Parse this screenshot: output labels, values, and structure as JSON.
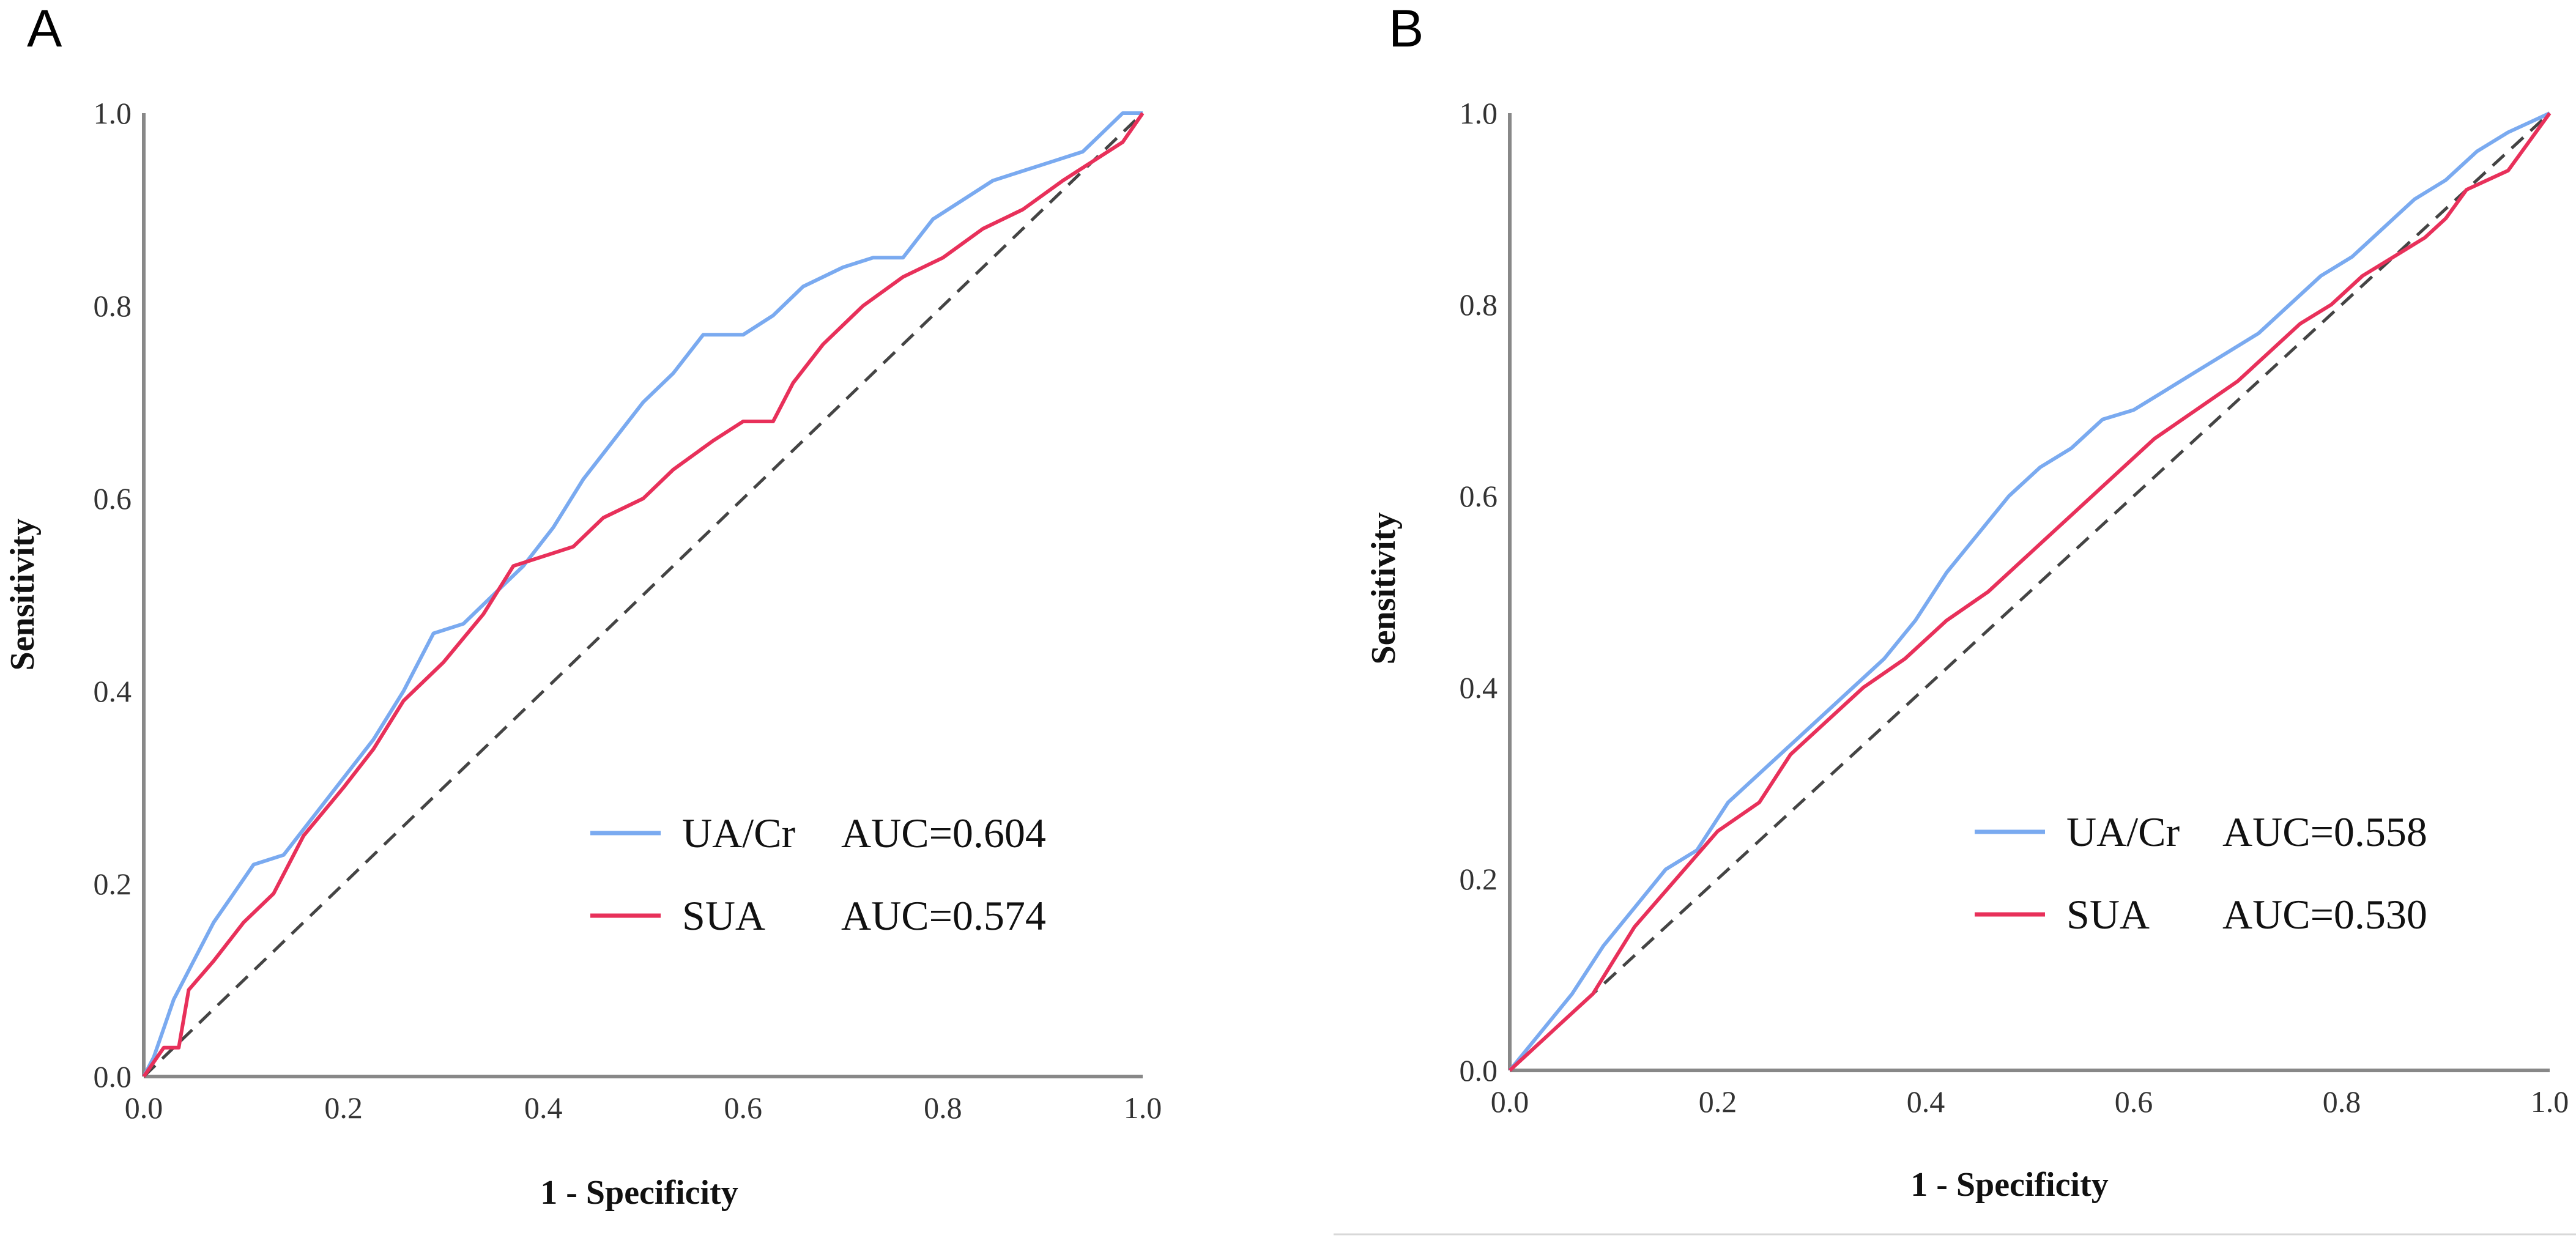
{
  "chart_data": [
    {
      "panel": "A",
      "type": "line",
      "xlabel": "1 - Specificity",
      "ylabel": "Sensitivity",
      "xlim": [
        0,
        1
      ],
      "ylim": [
        0,
        1
      ],
      "xticks": [
        "0.0",
        "0.2",
        "0.4",
        "0.6",
        "0.8",
        "1.0"
      ],
      "yticks": [
        "0.0",
        "0.2",
        "0.4",
        "0.6",
        "0.8",
        "1.0"
      ],
      "reference_line": true,
      "legend_position": "bottom-right",
      "series": [
        {
          "name": "UA/Cr",
          "auc_label": "AUC=0.604",
          "color": "#7aaaf0",
          "x": [
            0,
            0.01,
            0.02,
            0.03,
            0.05,
            0.07,
            0.09,
            0.11,
            0.14,
            0.17,
            0.2,
            0.23,
            0.26,
            0.29,
            0.32,
            0.35,
            0.38,
            0.41,
            0.44,
            0.47,
            0.5,
            0.53,
            0.56,
            0.6,
            0.63,
            0.66,
            0.7,
            0.73,
            0.76,
            0.79,
            0.82,
            0.85,
            0.88,
            0.91,
            0.94,
            0.96,
            0.98,
            1.0
          ],
          "y": [
            0,
            0.02,
            0.05,
            0.08,
            0.12,
            0.16,
            0.19,
            0.22,
            0.23,
            0.27,
            0.31,
            0.35,
            0.4,
            0.46,
            0.47,
            0.5,
            0.53,
            0.57,
            0.62,
            0.66,
            0.7,
            0.73,
            0.77,
            0.77,
            0.79,
            0.82,
            0.84,
            0.85,
            0.85,
            0.89,
            0.91,
            0.93,
            0.94,
            0.95,
            0.96,
            0.98,
            1.0,
            1.0
          ]
        },
        {
          "name": "SUA",
          "auc_label": "AUC=0.574",
          "color": "#e8305a",
          "x": [
            0,
            0.02,
            0.035,
            0.045,
            0.07,
            0.1,
            0.13,
            0.16,
            0.2,
            0.23,
            0.26,
            0.3,
            0.34,
            0.37,
            0.4,
            0.43,
            0.46,
            0.5,
            0.53,
            0.57,
            0.6,
            0.63,
            0.65,
            0.68,
            0.72,
            0.76,
            0.8,
            0.84,
            0.88,
            0.92,
            0.95,
            0.98,
            1.0
          ],
          "y": [
            0,
            0.03,
            0.03,
            0.09,
            0.12,
            0.16,
            0.19,
            0.25,
            0.3,
            0.34,
            0.39,
            0.43,
            0.48,
            0.53,
            0.54,
            0.55,
            0.58,
            0.6,
            0.63,
            0.66,
            0.68,
            0.68,
            0.72,
            0.76,
            0.8,
            0.83,
            0.85,
            0.88,
            0.9,
            0.93,
            0.95,
            0.97,
            1.0
          ]
        }
      ]
    },
    {
      "panel": "B",
      "type": "line",
      "xlabel": "1 - Specificity",
      "ylabel": "Sensitivity",
      "xlim": [
        0,
        1
      ],
      "ylim": [
        0,
        1
      ],
      "xticks": [
        "0.0",
        "0.2",
        "0.4",
        "0.6",
        "0.8",
        "1.0"
      ],
      "yticks": [
        "0.0",
        "0.2",
        "0.4",
        "0.6",
        "0.8",
        "1.0"
      ],
      "reference_line": true,
      "legend_position": "bottom-right",
      "series": [
        {
          "name": "UA/Cr",
          "auc_label": "AUC=0.558",
          "color": "#7aaaf0",
          "x": [
            0,
            0.03,
            0.06,
            0.09,
            0.12,
            0.15,
            0.18,
            0.21,
            0.24,
            0.27,
            0.3,
            0.33,
            0.36,
            0.39,
            0.42,
            0.45,
            0.48,
            0.51,
            0.54,
            0.57,
            0.6,
            0.63,
            0.66,
            0.69,
            0.72,
            0.75,
            0.78,
            0.81,
            0.84,
            0.87,
            0.9,
            0.93,
            0.96,
            0.98,
            1.0
          ],
          "y": [
            0,
            0.04,
            0.08,
            0.13,
            0.17,
            0.21,
            0.23,
            0.28,
            0.31,
            0.34,
            0.37,
            0.4,
            0.43,
            0.47,
            0.52,
            0.56,
            0.6,
            0.63,
            0.65,
            0.68,
            0.69,
            0.71,
            0.73,
            0.75,
            0.77,
            0.8,
            0.83,
            0.85,
            0.88,
            0.91,
            0.93,
            0.96,
            0.98,
            0.99,
            1.0
          ]
        },
        {
          "name": "SUA",
          "auc_label": "AUC=0.530",
          "color": "#e8305a",
          "x": [
            0,
            0.04,
            0.08,
            0.12,
            0.16,
            0.2,
            0.24,
            0.27,
            0.3,
            0.34,
            0.38,
            0.42,
            0.46,
            0.5,
            0.54,
            0.58,
            0.62,
            0.66,
            0.7,
            0.73,
            0.76,
            0.79,
            0.82,
            0.85,
            0.88,
            0.9,
            0.92,
            0.94,
            0.96,
            0.98,
            1.0
          ],
          "y": [
            0,
            0.04,
            0.08,
            0.15,
            0.2,
            0.25,
            0.28,
            0.33,
            0.36,
            0.4,
            0.43,
            0.47,
            0.5,
            0.54,
            0.58,
            0.62,
            0.66,
            0.69,
            0.72,
            0.75,
            0.78,
            0.8,
            0.83,
            0.85,
            0.87,
            0.89,
            0.92,
            0.93,
            0.94,
            0.97,
            1.0
          ]
        }
      ]
    }
  ]
}
